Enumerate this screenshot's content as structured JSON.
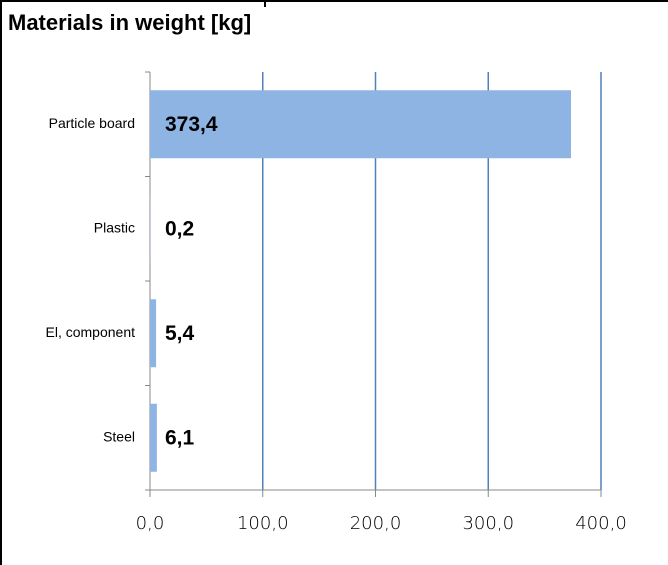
{
  "chart_data": {
    "type": "bar",
    "orientation": "horizontal",
    "title": "Materials in weight [kg]",
    "categories": [
      "Particle board",
      "Plastic",
      "El, component",
      "Steel"
    ],
    "values": [
      373.4,
      0.2,
      5.4,
      6.1
    ],
    "value_labels": [
      "373,4",
      "0,2",
      "5,4",
      "6,1"
    ],
    "color": "#8eb4e3",
    "xlim": [
      0,
      400
    ],
    "xticks": [
      {
        "value": 0,
        "label": "0,0"
      },
      {
        "value": 100,
        "label": "100,0"
      },
      {
        "value": 200,
        "label": "200,0"
      },
      {
        "value": 300,
        "label": "300,0"
      },
      {
        "value": 400,
        "label": "400,0"
      }
    ],
    "grid": true,
    "grid_color": "#4f81bd"
  }
}
